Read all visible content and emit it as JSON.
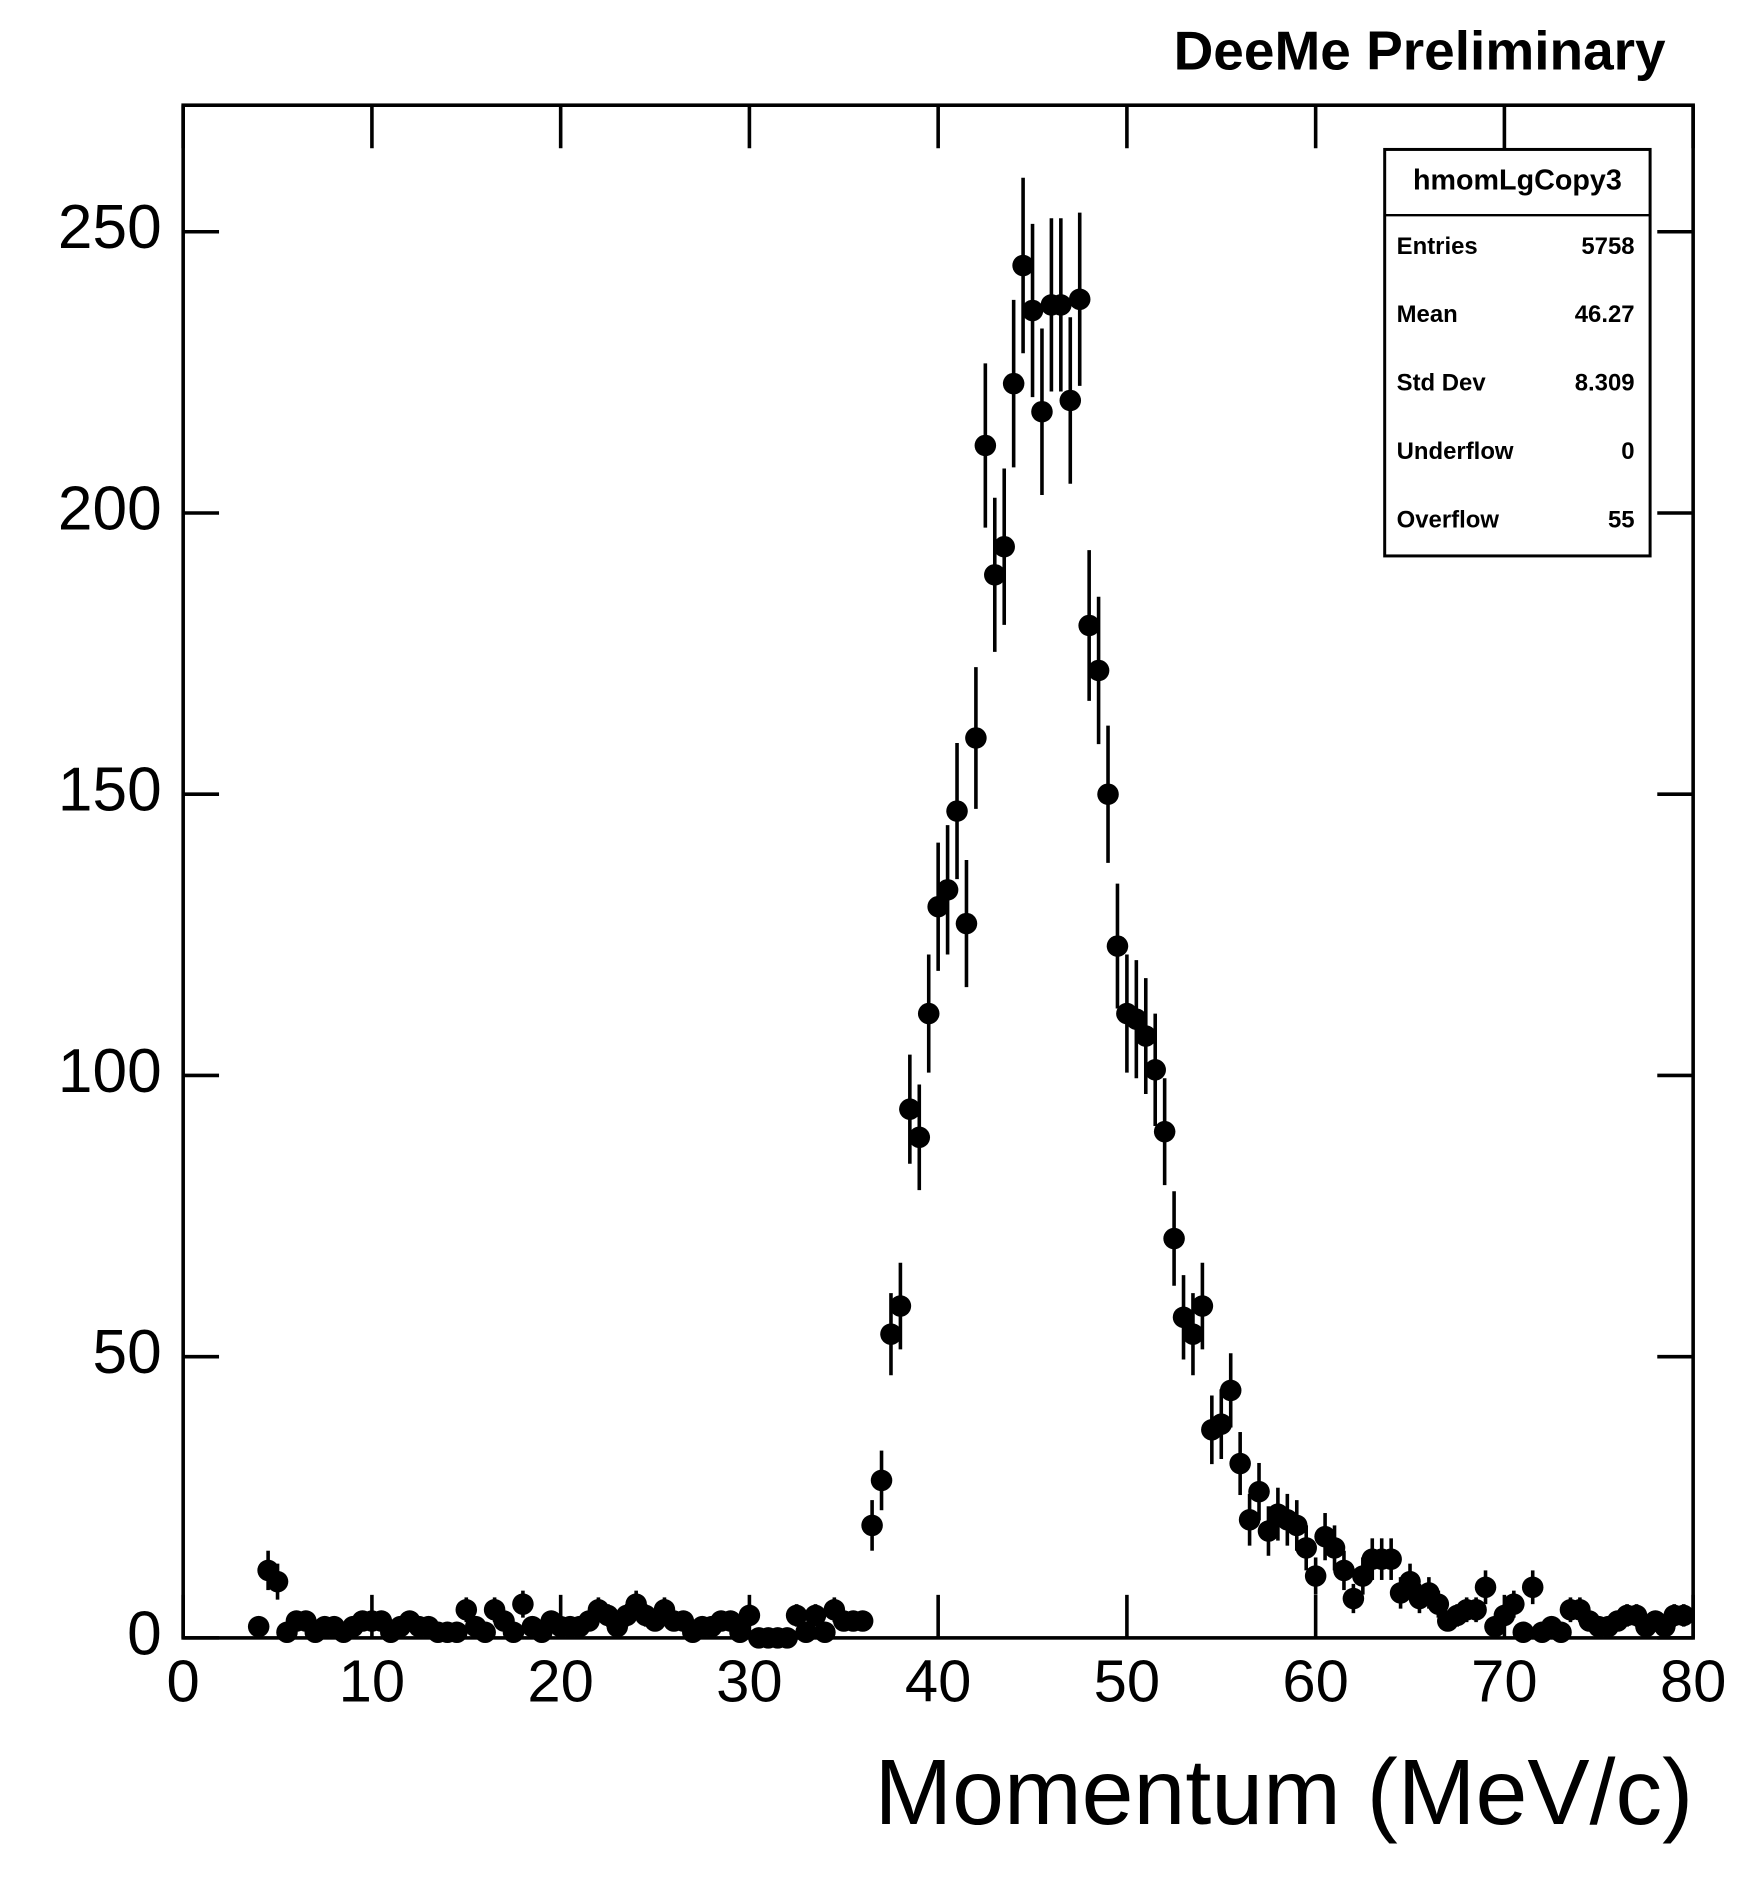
{
  "chart_data": {
    "type": "scatter",
    "title": "DeeMe Preliminary",
    "xlabel": "Momentum (MeV/c)",
    "color": "#000000",
    "x": [
      4,
      4.5,
      5,
      5.5,
      6,
      6.5,
      7,
      7.5,
      8,
      8.5,
      9,
      9.5,
      10,
      10.5,
      11,
      11.5,
      12,
      12.5,
      13,
      13.5,
      14,
      14.5,
      15,
      15.5,
      16,
      16.5,
      17,
      17.5,
      18,
      18.5,
      19,
      19.5,
      20,
      20.5,
      21,
      21.5,
      22,
      22.5,
      23,
      23.5,
      24,
      24.5,
      25,
      25.5,
      26,
      26.5,
      27,
      27.5,
      28,
      28.5,
      29,
      29.5,
      30,
      30.5,
      31,
      31.5,
      32,
      32.5,
      33,
      33.5,
      34,
      34.5,
      35,
      35.5,
      36,
      36.5,
      37,
      37.5,
      38,
      38.5,
      39,
      39.5,
      40,
      40.5,
      41,
      41.5,
      42,
      42.5,
      43,
      43.5,
      44,
      44.5,
      45,
      45.5,
      46,
      46.5,
      47,
      47.5,
      48,
      48.5,
      49,
      49.5,
      50,
      50.5,
      51,
      51.5,
      52,
      52.5,
      53,
      53.5,
      54,
      54.5,
      55,
      55.5,
      56,
      56.5,
      57,
      57.5,
      58,
      58.5,
      59,
      59.5,
      60,
      60.5,
      61,
      61.5,
      62,
      62.5,
      63,
      63.5,
      64,
      64.5,
      65,
      65.5,
      66,
      66.5,
      67,
      67.5,
      68,
      68.5,
      69,
      69.5,
      70,
      70.5,
      71,
      71.5,
      72,
      72.5,
      73,
      73.5,
      74,
      74.5,
      75,
      75.5,
      76,
      76.5,
      77,
      77.5,
      78,
      78.5,
      79,
      79.5
    ],
    "values": [
      2,
      12,
      10,
      1,
      3,
      3,
      1,
      2,
      2,
      1,
      2,
      3,
      3,
      3,
      1,
      2,
      3,
      2,
      2,
      1,
      1,
      1,
      5,
      2,
      1,
      5,
      3,
      1,
      6,
      2,
      1,
      3,
      2,
      2,
      2,
      3,
      5,
      4,
      2,
      4,
      6,
      4,
      3,
      5,
      3,
      3,
      1,
      2,
      2,
      3,
      3,
      1,
      4,
      0,
      0,
      0,
      0,
      4,
      1,
      4,
      1,
      5,
      3,
      3,
      3,
      20,
      28,
      54,
      59,
      94,
      89,
      111,
      130,
      133,
      147,
      127,
      160,
      212,
      189,
      194,
      223,
      244,
      236,
      218,
      237,
      237,
      220,
      238,
      180,
      172,
      150,
      123,
      111,
      110,
      107,
      101,
      90,
      71,
      57,
      54,
      59,
      37,
      38,
      44,
      31,
      21,
      26,
      19,
      22,
      21,
      20,
      16,
      11,
      18,
      16,
      12,
      7,
      11,
      14,
      14,
      14,
      8,
      10,
      7,
      8,
      6,
      3,
      4,
      5,
      5,
      9,
      2,
      4,
      6,
      1,
      9,
      1,
      2,
      1,
      5,
      5,
      3,
      2,
      2,
      3,
      4,
      4,
      2,
      3,
      2,
      4,
      4
    ],
    "errors": [
      1.4,
      3.5,
      3.2,
      1,
      1.7,
      1.7,
      1,
      1.4,
      1.4,
      1,
      1.4,
      1.7,
      1.7,
      1.7,
      1,
      1.4,
      1.7,
      1.4,
      1.4,
      1,
      1,
      1,
      2.2,
      1.4,
      1,
      2.2,
      1.7,
      1,
      2.4,
      1.4,
      1,
      1.7,
      1.4,
      1.4,
      1.4,
      1.7,
      2.2,
      2,
      1.4,
      2,
      2.4,
      2,
      1.7,
      2.2,
      1.7,
      1.7,
      1,
      1.4,
      1.4,
      1.7,
      1.7,
      1,
      2,
      0,
      0,
      0,
      0,
      2,
      1,
      2,
      1,
      2.2,
      1.7,
      1.7,
      1.7,
      4.5,
      5.3,
      7.3,
      7.7,
      9.7,
      9.4,
      10.5,
      11.4,
      11.5,
      12.1,
      11.3,
      12.6,
      14.6,
      13.7,
      13.9,
      14.9,
      15.6,
      15.4,
      14.8,
      15.4,
      15.4,
      14.8,
      15.4,
      13.4,
      13.1,
      12.2,
      11.1,
      10.5,
      10.5,
      10.3,
      10,
      9.5,
      8.4,
      7.5,
      7.3,
      7.7,
      6.1,
      6.2,
      6.6,
      5.6,
      4.6,
      5.1,
      4.4,
      4.7,
      4.6,
      4.5,
      4,
      3.3,
      4.2,
      4,
      3.5,
      2.6,
      3.3,
      3.7,
      3.7,
      3.7,
      2.8,
      3.2,
      2.6,
      2.8,
      2.4,
      1.7,
      2,
      2.2,
      2.2,
      3,
      1.4,
      2,
      2.4,
      1,
      3,
      1,
      1.4,
      1,
      2.2,
      2.2,
      1.7,
      1.4,
      1.4,
      1.7,
      2,
      2,
      1.4,
      1.7,
      1.4,
      2,
      2
    ],
    "xlim": [
      0,
      80
    ],
    "xticks": [
      0,
      10,
      20,
      30,
      40,
      50,
      60,
      70,
      80
    ],
    "ylim": [
      0,
      272.5
    ],
    "yticks": [
      0,
      50,
      100,
      150,
      200,
      250
    ],
    "stats": {
      "title": "hmomLgCopy3",
      "rows": [
        [
          "Entries",
          "5758"
        ],
        [
          "Mean",
          "46.27"
        ],
        [
          "Std Dev",
          "8.309"
        ],
        [
          "Underflow",
          "0"
        ],
        [
          "Overflow",
          "55"
        ]
      ]
    }
  }
}
